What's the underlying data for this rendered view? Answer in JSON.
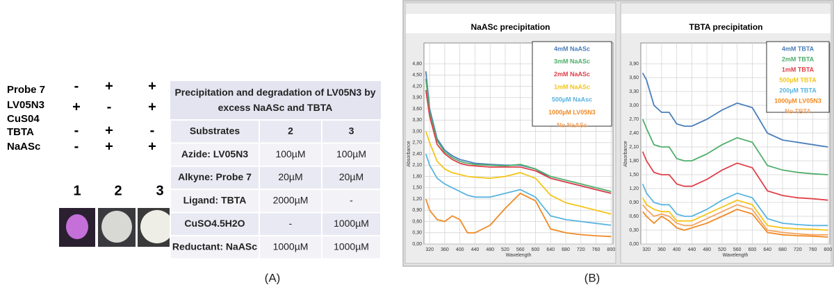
{
  "panel_a": {
    "rows": [
      {
        "label": "Probe 7",
        "signs": [
          "-",
          "+",
          "+"
        ]
      },
      {
        "label": "LV05N3",
        "signs": [
          "+",
          "-",
          "+"
        ]
      },
      {
        "label": "CuS04",
        "signs": []
      },
      {
        "label": "TBTA",
        "signs": [
          "-",
          "+",
          "-"
        ]
      },
      {
        "label": "NaASc",
        "signs": [
          "-",
          "+",
          "+"
        ]
      }
    ],
    "lanes": [
      "1",
      "2",
      "3"
    ],
    "table": {
      "title": "Precipitation and degradation of LV05N3 by excess NaASc and TBTA",
      "header": [
        "Substrates",
        "2",
        "3"
      ],
      "rows": [
        [
          "Azide: LV05N3",
          "100µM",
          "100µM"
        ],
        [
          "Alkyne: Probe 7",
          "20µM",
          "20µM"
        ],
        [
          "Ligand: TBTA",
          "2000µM",
          "-"
        ],
        [
          "CuSO4.5H2O",
          "-",
          "1000µM"
        ],
        [
          "Reductant: NaASc",
          "1000µM",
          "1000µM"
        ]
      ]
    },
    "caption": "(A)"
  },
  "panel_b_caption": "(B)",
  "chart_data": [
    {
      "type": "line",
      "title": "NaASc precipitation",
      "xlabel": "Wavelength",
      "ylabel": "Absorbance",
      "grid": true,
      "x": [
        310,
        320,
        340,
        360,
        380,
        400,
        420,
        440,
        480,
        520,
        560,
        600,
        640,
        680,
        720,
        760,
        800
      ],
      "xlim": [
        305,
        805
      ],
      "ylim": [
        0,
        4.8
      ],
      "xticks": [
        320,
        360,
        400,
        440,
        480,
        520,
        560,
        600,
        640,
        680,
        720,
        760,
        800
      ],
      "yticks": [
        {
          "value": 0,
          "label": "0,00"
        },
        {
          "value": 0.3,
          "label": "0,30"
        },
        {
          "value": 0.6,
          "label": "0,60"
        },
        {
          "value": 0.9,
          "label": "0,90"
        },
        {
          "value": 1.2,
          "label": "1,20"
        },
        {
          "value": 1.5,
          "label": "1,50"
        },
        {
          "value": 1.8,
          "label": "1,80"
        },
        {
          "value": 2.1,
          "label": "2,10"
        },
        {
          "value": 2.4,
          "label": "2,40"
        },
        {
          "value": 2.7,
          "label": "2,70"
        },
        {
          "value": 3.0,
          "label": "3,00"
        },
        {
          "value": 3.3,
          "label": "3,30"
        },
        {
          "value": 3.6,
          "label": "3,60"
        },
        {
          "value": 3.9,
          "label": "3,90"
        },
        {
          "value": 4.2,
          "label": "4,20"
        },
        {
          "value": 4.5,
          "label": "4,50"
        },
        {
          "value": 4.8,
          "label": "4,80"
        }
      ],
      "series": [
        {
          "name": "4mM NaASc",
          "color": "#4a7ebb",
          "values": [
            4.6,
            3.6,
            2.8,
            2.5,
            2.35,
            2.25,
            2.2,
            2.15,
            2.12,
            2.1,
            2.1,
            2.0,
            1.75,
            1.65,
            1.55,
            1.45,
            1.35
          ]
        },
        {
          "name": "3mM NaASc",
          "color": "#4fae6a",
          "values": [
            4.4,
            3.5,
            2.75,
            2.45,
            2.3,
            2.2,
            2.15,
            2.12,
            2.1,
            2.08,
            2.12,
            2.0,
            1.8,
            1.7,
            1.6,
            1.5,
            1.4
          ]
        },
        {
          "name": "2mM NaASc",
          "color": "#e0404a",
          "values": [
            4.1,
            3.4,
            2.65,
            2.4,
            2.25,
            2.15,
            2.1,
            2.08,
            2.05,
            2.05,
            2.05,
            1.95,
            1.75,
            1.65,
            1.55,
            1.45,
            1.35
          ]
        },
        {
          "name": "1mM NaASc",
          "color": "#f5c518",
          "values": [
            3.0,
            2.7,
            2.2,
            2.0,
            1.9,
            1.85,
            1.8,
            1.78,
            1.75,
            1.8,
            1.9,
            1.75,
            1.3,
            1.1,
            1.0,
            0.9,
            0.8
          ]
        },
        {
          "name": "500µM NaAsc",
          "color": "#5ab4e0",
          "values": [
            2.4,
            2.1,
            1.75,
            1.6,
            1.5,
            1.4,
            1.3,
            1.25,
            1.25,
            1.35,
            1.45,
            1.25,
            0.75,
            0.65,
            0.6,
            0.55,
            0.5
          ]
        },
        {
          "name": "1000µM LV05N3",
          "color": "#f08a24",
          "values": [
            1.2,
            0.9,
            0.65,
            0.6,
            0.75,
            0.65,
            0.3,
            0.3,
            0.5,
            0.95,
            1.35,
            1.15,
            0.4,
            0.3,
            0.25,
            0.22,
            0.2
          ]
        },
        {
          "name": "No NaASc",
          "color": "#f4a460",
          "values": [
            null,
            null,
            null,
            null,
            null,
            null,
            null,
            null,
            null,
            null,
            null,
            null,
            null,
            null,
            null,
            null,
            null
          ]
        }
      ]
    },
    {
      "type": "line",
      "title": "TBTA precipitation",
      "xlabel": "Wavelength",
      "ylabel": "Absorbance",
      "grid": true,
      "x": [
        310,
        320,
        340,
        360,
        380,
        400,
        420,
        440,
        480,
        520,
        560,
        600,
        640,
        680,
        720,
        760,
        800
      ],
      "xlim": [
        305,
        805
      ],
      "ylim": [
        0,
        3.9
      ],
      "xticks": [
        320,
        360,
        400,
        440,
        480,
        520,
        560,
        600,
        640,
        680,
        720,
        760,
        800
      ],
      "yticks": [
        {
          "value": 0,
          "label": "0,00"
        },
        {
          "value": 0.3,
          "label": "0,30"
        },
        {
          "value": 0.6,
          "label": "0,60"
        },
        {
          "value": 0.9,
          "label": "0,90"
        },
        {
          "value": 1.2,
          "label": "1,20"
        },
        {
          "value": 1.5,
          "label": "1,50"
        },
        {
          "value": 1.8,
          "label": "1,80"
        },
        {
          "value": 2.1,
          "label": "2,10"
        },
        {
          "value": 2.4,
          "label": "2,40"
        },
        {
          "value": 2.7,
          "label": "2,70"
        },
        {
          "value": 3.0,
          "label": "3,00"
        },
        {
          "value": 3.3,
          "label": "3,30"
        },
        {
          "value": 3.6,
          "label": "3,60"
        },
        {
          "value": 3.9,
          "label": "3,90"
        }
      ],
      "series": [
        {
          "name": "4mM TBTA",
          "color": "#4a7ebb",
          "values": [
            3.7,
            3.55,
            3.0,
            2.85,
            2.85,
            2.6,
            2.55,
            2.55,
            2.7,
            2.9,
            3.05,
            2.95,
            2.4,
            2.25,
            2.2,
            2.15,
            2.1
          ]
        },
        {
          "name": "2mM TBTA",
          "color": "#4fae6a",
          "values": [
            2.7,
            2.5,
            2.15,
            2.1,
            2.1,
            1.85,
            1.8,
            1.8,
            1.95,
            2.15,
            2.3,
            2.2,
            1.7,
            1.6,
            1.55,
            1.52,
            1.5
          ]
        },
        {
          "name": "1mM TBTA",
          "color": "#e0404a",
          "values": [
            2.0,
            1.8,
            1.55,
            1.5,
            1.5,
            1.3,
            1.25,
            1.25,
            1.4,
            1.6,
            1.75,
            1.65,
            1.15,
            1.05,
            1.0,
            0.98,
            0.95
          ]
        },
        {
          "name": "500µM TBTA",
          "color": "#f5c518",
          "values": [
            1.0,
            0.85,
            0.75,
            0.7,
            0.7,
            0.5,
            0.5,
            0.5,
            0.65,
            0.8,
            0.95,
            0.85,
            0.4,
            0.35,
            0.33,
            0.32,
            0.3
          ]
        },
        {
          "name": "200µM TBTA",
          "color": "#5ab4e0",
          "values": [
            1.3,
            1.1,
            0.9,
            0.85,
            0.85,
            0.65,
            0.6,
            0.6,
            0.75,
            0.95,
            1.1,
            1.0,
            0.55,
            0.45,
            0.42,
            0.4,
            0.4
          ]
        },
        {
          "name": "1000µM LV05N3",
          "color": "#f08a24",
          "values": [
            0.7,
            0.6,
            0.45,
            0.6,
            0.5,
            0.35,
            0.3,
            0.35,
            0.45,
            0.6,
            0.75,
            0.65,
            0.25,
            0.2,
            0.18,
            0.17,
            0.15
          ]
        },
        {
          "name": "No TBTA",
          "color": "#f4a460",
          "values": [
            0.85,
            0.75,
            0.6,
            0.65,
            0.6,
            0.45,
            0.4,
            0.4,
            0.55,
            0.7,
            0.85,
            0.75,
            0.3,
            0.25,
            0.22,
            0.2,
            0.2
          ]
        }
      ]
    }
  ]
}
